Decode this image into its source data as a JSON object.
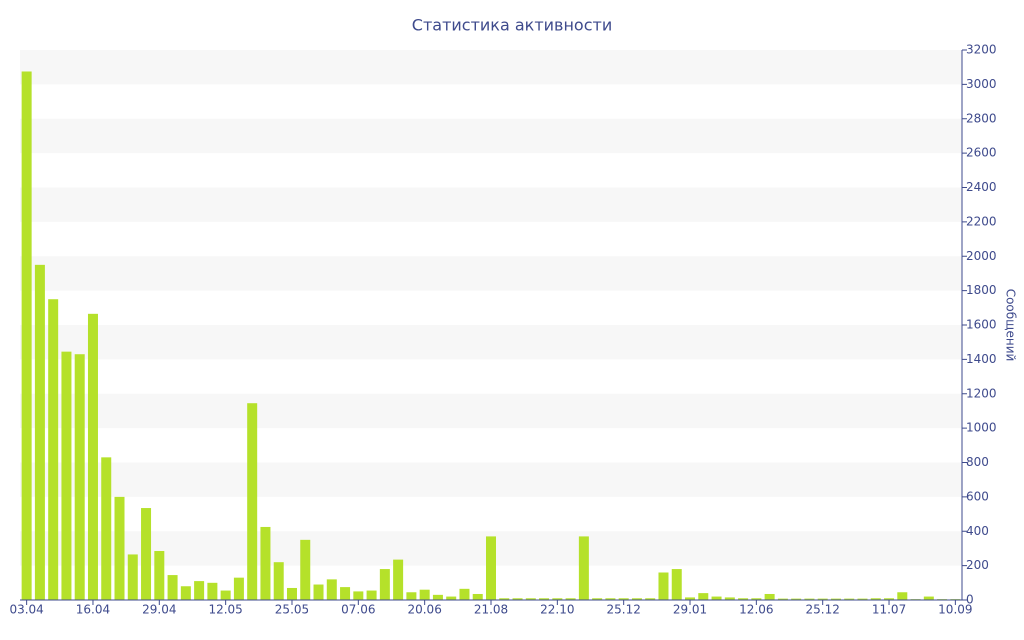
{
  "chart_data": {
    "type": "bar",
    "title": "Статистика активности",
    "y_label": "Сообщений",
    "color": "#b5e12a",
    "grid": true,
    "categories": [
      "03.04",
      null,
      null,
      null,
      null,
      "16.04",
      null,
      null,
      null,
      null,
      "29.04",
      null,
      null,
      null,
      null,
      "12.05",
      null,
      null,
      null,
      null,
      "25.05",
      null,
      null,
      null,
      null,
      "07.06",
      null,
      null,
      null,
      null,
      "20.06",
      null,
      null,
      null,
      null,
      "21.08",
      null,
      null,
      null,
      null,
      "22.10",
      null,
      null,
      null,
      null,
      "25.12",
      null,
      null,
      null,
      null,
      "29.01",
      null,
      null,
      null,
      null,
      "12.06",
      null,
      null,
      null,
      null,
      "25.12",
      null,
      null,
      null,
      null,
      "11.07",
      null,
      null,
      null,
      null,
      "10.09"
    ],
    "values": [
      3075,
      1950,
      1750,
      1445,
      1430,
      1665,
      830,
      600,
      265,
      535,
      285,
      145,
      80,
      110,
      100,
      55,
      130,
      1145,
      425,
      220,
      70,
      350,
      90,
      120,
      75,
      50,
      55,
      180,
      235,
      45,
      60,
      30,
      20,
      65,
      35,
      370,
      10,
      10,
      10,
      10,
      10,
      10,
      370,
      10,
      10,
      10,
      10,
      10,
      160,
      180,
      15,
      40,
      20,
      15,
      10,
      10,
      35,
      8,
      8,
      8,
      8,
      8,
      8,
      8,
      10,
      10,
      45,
      5,
      20,
      5,
      5
    ],
    "ylim": [
      0,
      3200
    ],
    "yticks": [
      0,
      200,
      400,
      600,
      800,
      1000,
      1200,
      1400,
      1600,
      1800,
      2000,
      2200,
      2400,
      2600,
      2800,
      3000,
      3200
    ]
  }
}
